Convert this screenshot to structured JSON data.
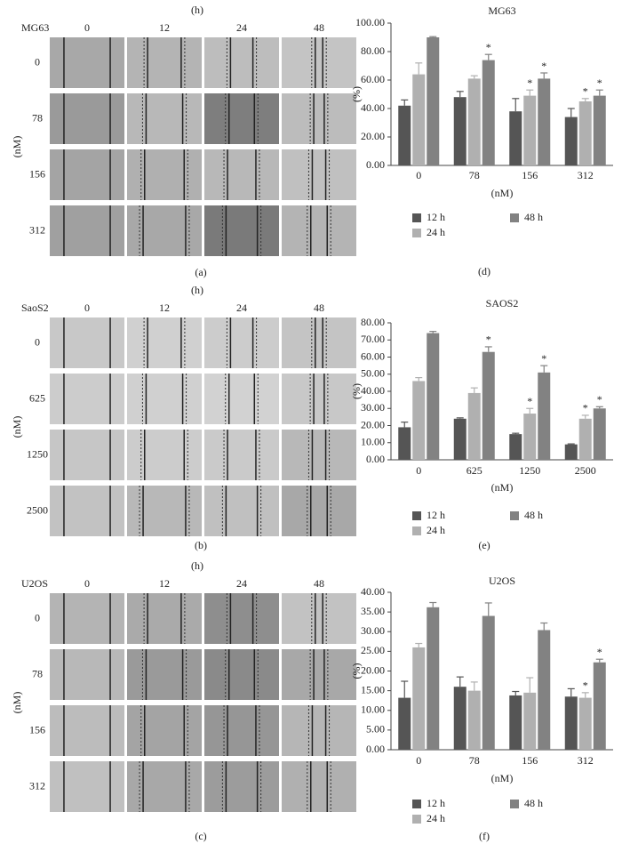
{
  "image_panels": [
    {
      "title": "(h)",
      "cell_line": "MG63",
      "columns": [
        "0",
        "12",
        "24",
        "48"
      ],
      "rows": [
        "0",
        "78",
        "156",
        "312"
      ],
      "row_axis_label": "(nM)",
      "panel_label": "(a)"
    },
    {
      "title": "(h)",
      "cell_line": "SaoS2",
      "columns": [
        "0",
        "12",
        "24",
        "48"
      ],
      "rows": [
        "0",
        "625",
        "1250",
        "2500"
      ],
      "row_axis_label": "(nM)",
      "panel_label": "(b)"
    },
    {
      "title": "(h)",
      "cell_line": "U2OS",
      "columns": [
        "0",
        "12",
        "24",
        "48"
      ],
      "rows": [
        "0",
        "78",
        "156",
        "312"
      ],
      "row_axis_label": "(nM)",
      "panel_label": "(c)"
    }
  ],
  "chart_data": [
    {
      "type": "bar",
      "title": "MG63",
      "y_label": "(%)",
      "x_label": "(nM)",
      "panel_label": "(d)",
      "categories": [
        "0",
        "78",
        "156",
        "312"
      ],
      "ylim": [
        0,
        100
      ],
      "yticks": [
        {
          "value": 0,
          "label": "0.00"
        },
        {
          "value": 20,
          "label": "20.00"
        },
        {
          "value": 40,
          "label": "40.00"
        },
        {
          "value": 60,
          "label": "60.00"
        },
        {
          "value": 80,
          "label": "80.00"
        },
        {
          "value": 100,
          "label": "100.00"
        }
      ],
      "series": [
        {
          "name": "12 h",
          "color": "#555555",
          "values": [
            42,
            48,
            38,
            34
          ],
          "errors": [
            4,
            4,
            9,
            6
          ],
          "significance": [
            null,
            null,
            null,
            null
          ]
        },
        {
          "name": "24 h",
          "color": "#b0b0b0",
          "values": [
            64,
            61,
            49,
            45
          ],
          "errors": [
            8,
            2,
            4,
            2
          ],
          "significance": [
            null,
            null,
            "*",
            "*"
          ]
        },
        {
          "name": "48 h",
          "color": "#828282",
          "values": [
            90,
            74,
            61,
            49
          ],
          "errors": [
            0.5,
            4,
            4,
            4
          ],
          "significance": [
            null,
            "*",
            "*",
            "*"
          ]
        }
      ]
    },
    {
      "type": "bar",
      "title": "SAOS2",
      "y_label": "(%)",
      "x_label": "(nM)",
      "panel_label": "(e)",
      "categories": [
        "0",
        "625",
        "1250",
        "2500"
      ],
      "ylim": [
        0,
        80
      ],
      "yticks": [
        {
          "value": 0,
          "label": "0.00"
        },
        {
          "value": 10,
          "label": "10.00"
        },
        {
          "value": 20,
          "label": "20.00"
        },
        {
          "value": 30,
          "label": "30.00"
        },
        {
          "value": 40,
          "label": "40.00"
        },
        {
          "value": 50,
          "label": "50.00"
        },
        {
          "value": 60,
          "label": "60.00"
        },
        {
          "value": 70,
          "label": "70.00"
        },
        {
          "value": 80,
          "label": "80.00"
        }
      ],
      "series": [
        {
          "name": "12 h",
          "color": "#555555",
          "values": [
            19,
            24,
            15,
            9
          ],
          "errors": [
            3,
            0.5,
            0.5,
            0.3
          ],
          "significance": [
            null,
            null,
            null,
            null
          ]
        },
        {
          "name": "24 h",
          "color": "#b0b0b0",
          "values": [
            46,
            39,
            27,
            24
          ],
          "errors": [
            2,
            3,
            3,
            2
          ],
          "significance": [
            null,
            null,
            "*",
            "*"
          ]
        },
        {
          "name": "48 h",
          "color": "#828282",
          "values": [
            74,
            63,
            51,
            30
          ],
          "errors": [
            1,
            3,
            4,
            1
          ],
          "significance": [
            null,
            "*",
            "*",
            "*"
          ]
        }
      ]
    },
    {
      "type": "bar",
      "title": "U2OS",
      "y_label": "(%)",
      "x_label": "(nM)",
      "panel_label": "(f)",
      "categories": [
        "0",
        "78",
        "156",
        "312"
      ],
      "ylim": [
        0,
        40
      ],
      "yticks": [
        {
          "value": 0,
          "label": "0.00"
        },
        {
          "value": 5,
          "label": "5.00"
        },
        {
          "value": 10,
          "label": "10.00"
        },
        {
          "value": 15,
          "label": "15.00"
        },
        {
          "value": 20,
          "label": "20.00"
        },
        {
          "value": 25,
          "label": "25.00"
        },
        {
          "value": 30,
          "label": "30.00"
        },
        {
          "value": 35,
          "label": "35.00"
        },
        {
          "value": 40,
          "label": "40.00"
        }
      ],
      "series": [
        {
          "name": "12 h",
          "color": "#555555",
          "values": [
            13.2,
            16,
            13.8,
            13.5
          ],
          "errors": [
            4.2,
            2.5,
            1,
            2
          ],
          "significance": [
            null,
            null,
            null,
            null
          ]
        },
        {
          "name": "24 h",
          "color": "#b0b0b0",
          "values": [
            26,
            15,
            14.5,
            13.2
          ],
          "errors": [
            1,
            2.2,
            3.8,
            1.3
          ],
          "significance": [
            null,
            null,
            null,
            "*"
          ]
        },
        {
          "name": "48 h",
          "color": "#828282",
          "values": [
            36.2,
            34,
            30.4,
            22.2
          ],
          "errors": [
            1.2,
            3.3,
            1.8,
            0.8
          ],
          "significance": [
            null,
            null,
            null,
            "*"
          ]
        }
      ]
    }
  ]
}
